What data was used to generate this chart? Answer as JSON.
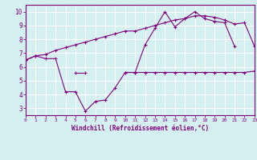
{
  "x": [
    0,
    1,
    2,
    3,
    4,
    5,
    6,
    7,
    8,
    9,
    10,
    11,
    12,
    13,
    14,
    15,
    16,
    17,
    18,
    19,
    20,
    21,
    22,
    23
  ],
  "line1": [
    6.5,
    6.8,
    6.6,
    6.6,
    4.2,
    4.2,
    2.8,
    3.5,
    3.6,
    4.5,
    5.6,
    5.6,
    7.6,
    8.8,
    10.0,
    8.9,
    9.5,
    10.0,
    9.5,
    9.3,
    9.2,
    7.5,
    null,
    null
  ],
  "line2": [
    6.5,
    null,
    null,
    null,
    null,
    5.6,
    5.6,
    null,
    null,
    null,
    5.6,
    5.6,
    5.6,
    5.6,
    5.6,
    5.6,
    5.6,
    5.6,
    5.6,
    5.6,
    5.6,
    5.6,
    5.6,
    5.7
  ],
  "line3": [
    6.5,
    6.8,
    6.9,
    7.2,
    7.4,
    7.6,
    7.8,
    8.0,
    8.2,
    8.4,
    8.6,
    8.6,
    8.8,
    9.0,
    9.2,
    9.4,
    9.5,
    9.7,
    9.7,
    9.6,
    9.4,
    9.1,
    9.2,
    7.5
  ],
  "color": "#800080",
  "bg_color": "#d4f0f0",
  "grid_color": "#ffffff",
  "xlabel": "Windchill (Refroidissement éolien,°C)",
  "xlim": [
    0,
    23
  ],
  "ylim": [
    2.5,
    10.5
  ],
  "yticks": [
    3,
    4,
    5,
    6,
    7,
    8,
    9,
    10
  ],
  "xticks": [
    0,
    1,
    2,
    3,
    4,
    5,
    6,
    7,
    8,
    9,
    10,
    11,
    12,
    13,
    14,
    15,
    16,
    17,
    18,
    19,
    20,
    21,
    22,
    23
  ],
  "marker": "+"
}
